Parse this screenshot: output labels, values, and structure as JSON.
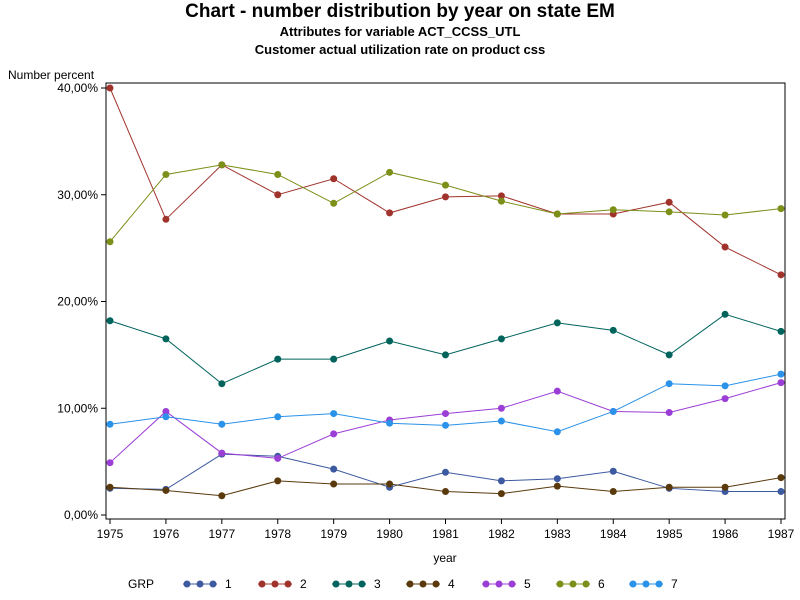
{
  "title": "Chart - number distribution by year on state EM",
  "subtitle1": "Attributes for variable ACT_CCSS_UTL",
  "subtitle2": "Customer actual utilization rate on product css",
  "legend_title": "GRP",
  "chart_data": {
    "type": "line",
    "title": "Chart - number distribution by year on state EM",
    "ylabel": "Number percent",
    "xlabel": "year",
    "x": [
      1975,
      1976,
      1977,
      1978,
      1979,
      1980,
      1981,
      1982,
      1983,
      1984,
      1985,
      1986,
      1987
    ],
    "ylim": [
      0,
      40
    ],
    "yticks": [
      "0,00%",
      "10,00%",
      "20,00%",
      "30,00%",
      "40,00%"
    ],
    "ytick_values": [
      0,
      10,
      20,
      30,
      40
    ],
    "grid": false,
    "legend": "bottom",
    "series": [
      {
        "name": "1",
        "color": "#3d5aa0",
        "values": [
          2.5,
          2.4,
          5.7,
          5.5,
          4.3,
          2.6,
          4.0,
          3.2,
          3.4,
          4.1,
          2.5,
          2.2,
          2.2
        ]
      },
      {
        "name": "2",
        "color": "#a0342c",
        "values": [
          40.0,
          27.7,
          32.8,
          30.0,
          31.5,
          28.3,
          29.8,
          29.9,
          28.2,
          28.2,
          29.3,
          25.1,
          22.5
        ]
      },
      {
        "name": "3",
        "color": "#00645c",
        "values": [
          18.2,
          16.5,
          12.3,
          14.6,
          14.6,
          16.3,
          15.0,
          16.5,
          18.0,
          17.3,
          15.0,
          18.8,
          17.2
        ]
      },
      {
        "name": "4",
        "color": "#5a3a0c",
        "values": [
          2.6,
          2.3,
          1.8,
          3.2,
          2.9,
          2.9,
          2.2,
          2.0,
          2.7,
          2.2,
          2.6,
          2.6,
          3.5
        ]
      },
      {
        "name": "5",
        "color": "#9b3ed6",
        "values": [
          4.9,
          9.7,
          5.8,
          5.3,
          7.6,
          8.9,
          9.5,
          10.0,
          11.6,
          9.7,
          9.6,
          10.9,
          12.4
        ]
      },
      {
        "name": "6",
        "color": "#7c8f18",
        "values": [
          25.6,
          31.9,
          32.8,
          31.9,
          29.2,
          32.1,
          30.9,
          29.4,
          28.2,
          28.6,
          28.4,
          28.1,
          28.7
        ]
      },
      {
        "name": "7",
        "color": "#2a92e8",
        "values": [
          8.5,
          9.2,
          8.5,
          9.2,
          9.5,
          8.6,
          8.4,
          8.8,
          7.8,
          9.7,
          12.3,
          12.1,
          13.2
        ]
      }
    ]
  }
}
